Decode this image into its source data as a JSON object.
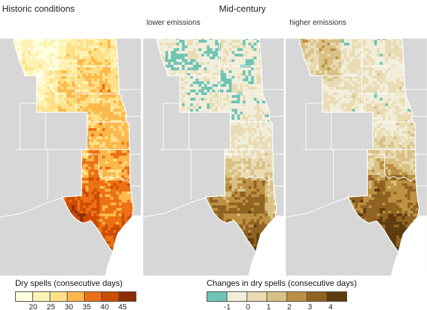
{
  "titles": {
    "historic": "Historic conditions",
    "mid_century": "Mid-century"
  },
  "panels": [
    {
      "id": "historic",
      "label": ""
    },
    {
      "id": "lower-emissions",
      "label": "lower emissions"
    },
    {
      "id": "higher-emissions",
      "label": "higher emissions"
    }
  ],
  "legends": [
    {
      "title": "Dry spells (consecutive days)",
      "colors": [
        "#ffffe0",
        "#fef3b5",
        "#fee187",
        "#fdb84b",
        "#ec7014",
        "#cc4c02",
        "#8c2d04"
      ],
      "ticks": [
        "20",
        "25",
        "30",
        "35",
        "40",
        "45"
      ]
    },
    {
      "title": "Changes in dry spells (consecutive days)",
      "colors": [
        "#6fc5b5",
        "#f2eedb",
        "#e9dcb4",
        "#d9c083",
        "#bd9143",
        "#906322",
        "#5e3c10"
      ],
      "ticks": [
        "-1",
        "0",
        "1",
        "2",
        "3",
        "4"
      ]
    }
  ],
  "map_colors": {
    "land": "#d7d7d7",
    "water": "#ffffff",
    "border": "#ffffff"
  }
}
